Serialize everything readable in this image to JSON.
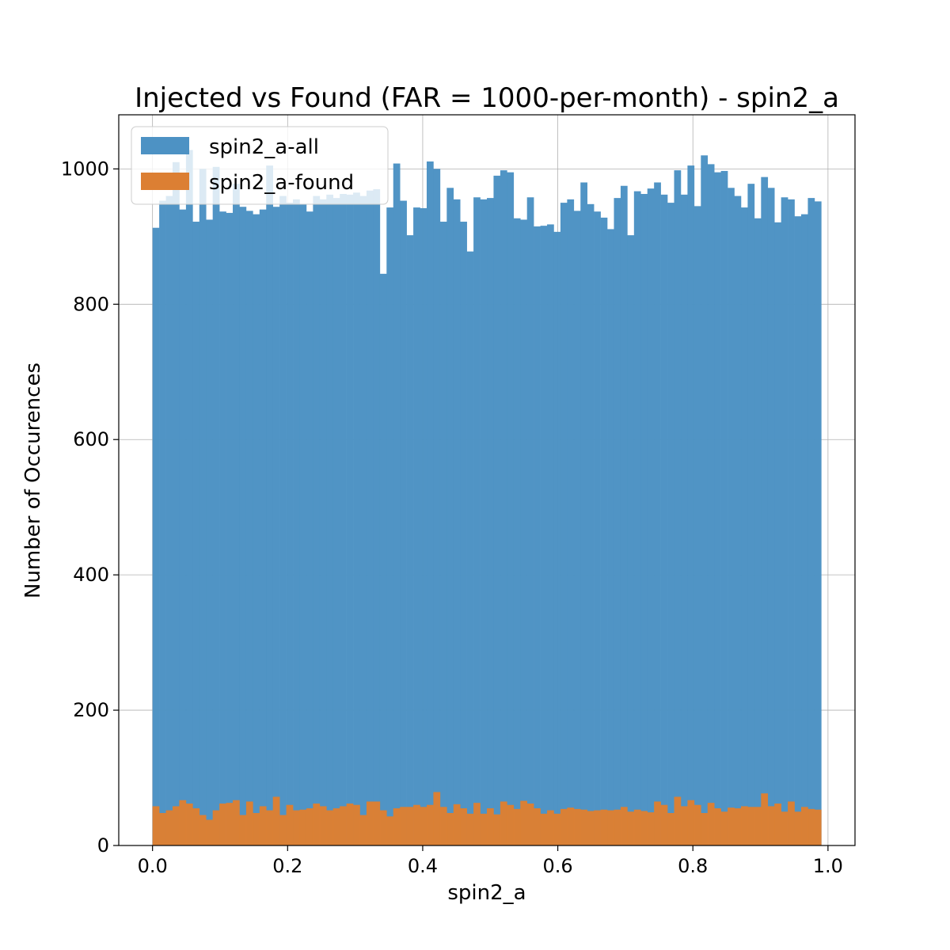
{
  "chart_data": {
    "type": "bar",
    "title": "Injected vs Found (FAR = 1000-per-month) - spin2_a",
    "xlabel": "spin2_a",
    "ylabel": "Number of Occurences",
    "xlim": [
      -0.05,
      1.04
    ],
    "ylim": [
      0,
      1080
    ],
    "xticks": [
      0.0,
      0.2,
      0.4,
      0.6,
      0.8,
      1.0
    ],
    "xtick_labels": [
      "0.0",
      "0.2",
      "0.4",
      "0.6",
      "0.8",
      "1.0"
    ],
    "yticks": [
      0,
      200,
      400,
      600,
      800,
      1000
    ],
    "ytick_labels": [
      "0",
      "200",
      "400",
      "600",
      "800",
      "1000"
    ],
    "grid": true,
    "legend_position": "upper-left",
    "bin_start": 0.0,
    "bin_width": 0.0099,
    "series": [
      {
        "name": "spin2_a-all",
        "color": "#4d92c4",
        "values": [
          913,
          953,
          960,
          1010,
          940,
          1028,
          922,
          1000,
          925,
          1003,
          937,
          935,
          978,
          944,
          938,
          933,
          940,
          1005,
          944,
          960,
          950,
          955,
          948,
          937,
          960,
          955,
          962,
          957,
          963,
          962,
          965,
          960,
          968,
          970,
          845,
          943,
          1008,
          953,
          902,
          943,
          942,
          1011,
          1000,
          922,
          972,
          955,
          922,
          878,
          958,
          955,
          957,
          990,
          998,
          995,
          927,
          925,
          958,
          915,
          916,
          918,
          907,
          950,
          955,
          938,
          980,
          948,
          937,
          928,
          911,
          957,
          975,
          902,
          967,
          963,
          971,
          980,
          962,
          950,
          998,
          962,
          1005,
          945,
          1020,
          1007,
          995,
          997,
          972,
          960,
          943,
          978,
          927,
          988,
          972,
          921,
          958,
          955,
          930,
          933,
          957,
          952
        ]
      },
      {
        "name": "spin2_a-found",
        "color": "#dc7f33",
        "values": [
          58,
          48,
          52,
          58,
          67,
          62,
          55,
          45,
          38,
          52,
          62,
          63,
          67,
          45,
          65,
          48,
          58,
          52,
          72,
          45,
          60,
          52,
          53,
          55,
          62,
          58,
          52,
          55,
          58,
          62,
          60,
          45,
          65,
          65,
          52,
          43,
          55,
          57,
          57,
          60,
          57,
          60,
          79,
          57,
          48,
          61,
          55,
          47,
          63,
          47,
          55,
          46,
          65,
          60,
          54,
          66,
          62,
          55,
          47,
          52,
          47,
          54,
          56,
          54,
          53,
          51,
          52,
          53,
          52,
          53,
          57,
          50,
          53,
          51,
          49,
          65,
          60,
          48,
          72,
          58,
          67,
          60,
          48,
          63,
          55,
          50,
          56,
          55,
          58,
          57,
          57,
          77,
          58,
          62,
          50,
          65,
          50,
          57,
          54,
          53
        ]
      }
    ]
  }
}
